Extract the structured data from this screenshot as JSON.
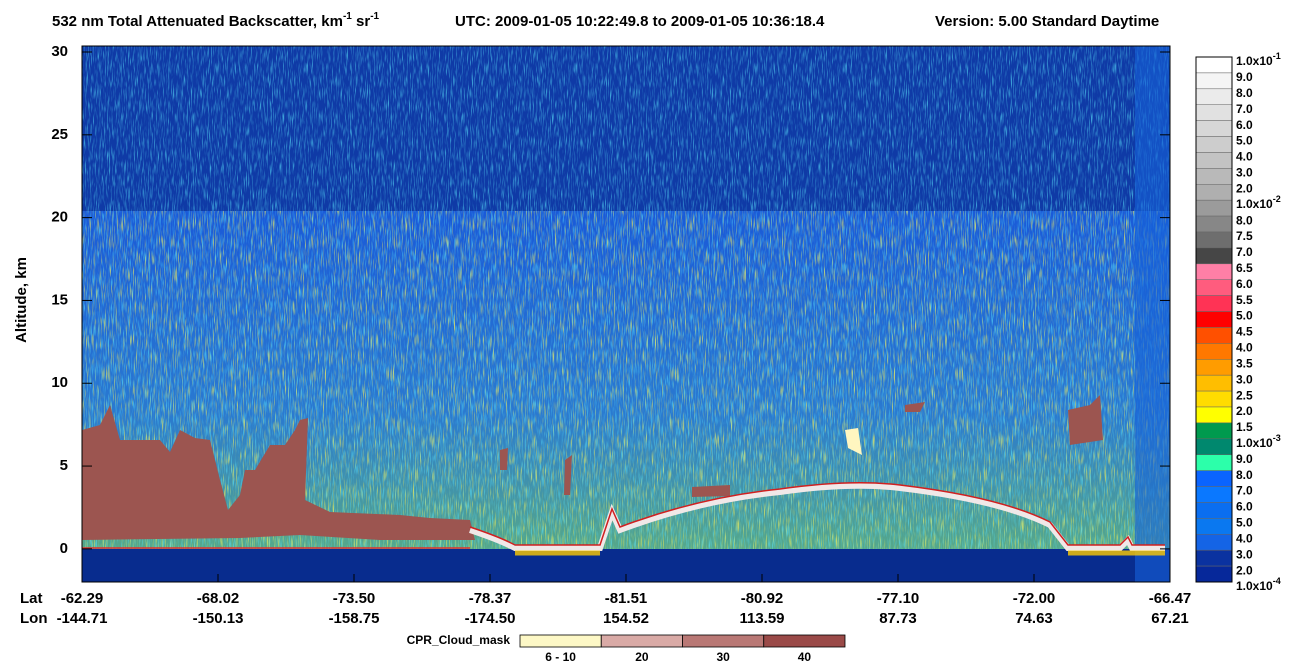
{
  "chart_data": {
    "type": "curtain",
    "title": [
      {
        "text": "532 nm Total Attenuated Backscatter, km"
      },
      {
        "text": "-1",
        "superscript": true
      },
      {
        "text": " sr"
      },
      {
        "text": "-1",
        "superscript": true
      }
    ],
    "utc": "UTC:  2009-01-05 10:22:49.8  to  2009-01-05 10:36:18.4",
    "version": "Version: 5.00  Standard  Daytime",
    "ylabel": "Altitude, km",
    "ylim": [
      -2,
      30
    ],
    "yticks": [
      0,
      5,
      10,
      15,
      20,
      25,
      30
    ],
    "lat_label": "Lat",
    "lon_label": "Lon",
    "lat": [
      "-62.29",
      "-68.02",
      "-73.50",
      "-78.37",
      "-81.51",
      "-80.92",
      "-77.10",
      "-72.00",
      "-66.47"
    ],
    "lon": [
      "-144.71",
      "-150.13",
      "-158.75",
      "-174.50",
      "154.52",
      "113.59",
      "87.73",
      "74.63",
      "67.21"
    ],
    "colorbar": {
      "labels": [
        {
          "text": "1.0x10",
          "sup": "-1"
        },
        "9.0",
        "8.0",
        "7.0",
        "6.0",
        "5.0",
        "4.0",
        "3.0",
        "2.0",
        {
          "text": "1.0x10",
          "sup": "-2"
        },
        "8.0",
        "7.5",
        "7.0",
        "6.5",
        "6.0",
        "5.5",
        "5.0",
        "4.5",
        "4.0",
        "3.5",
        "3.0",
        "2.5",
        "2.0",
        "1.5",
        {
          "text": "1.0x10",
          "sup": "-3"
        },
        "9.0",
        "8.0",
        "7.0",
        "6.0",
        "5.0",
        "4.0",
        "3.0",
        "2.0",
        {
          "text": "1.0x10",
          "sup": "-4"
        }
      ],
      "colors": [
        "#ffffff",
        "#f5f5f5",
        "#ebebeb",
        "#e1e1e1",
        "#d7d7d7",
        "#cdcdcd",
        "#c3c3c3",
        "#b9b9b9",
        "#afafaf",
        "#9b9b9b",
        "#878787",
        "#6e6e6e",
        "#464646",
        "#ff7fa6",
        "#ff5c7e",
        "#ff3355",
        "#ff0000",
        "#ff5000",
        "#ff7800",
        "#ff9c00",
        "#ffbe00",
        "#ffdc00",
        "#ffff00",
        "#009a4e",
        "#00886e",
        "#2cffaa",
        "#0a64ff",
        "#0a78ff",
        "#0a6ef0",
        "#0a78f0",
        "#1464e6",
        "#0a32a0",
        "#06289a"
      ]
    },
    "cloud_mask": {
      "title": "CPR_Cloud_mask",
      "labels": [
        "6 - 10",
        "20",
        "30",
        "40"
      ],
      "colors": [
        "#fdf8c6",
        "#d9aaa6",
        "#b97875",
        "#9a4a48"
      ]
    }
  }
}
